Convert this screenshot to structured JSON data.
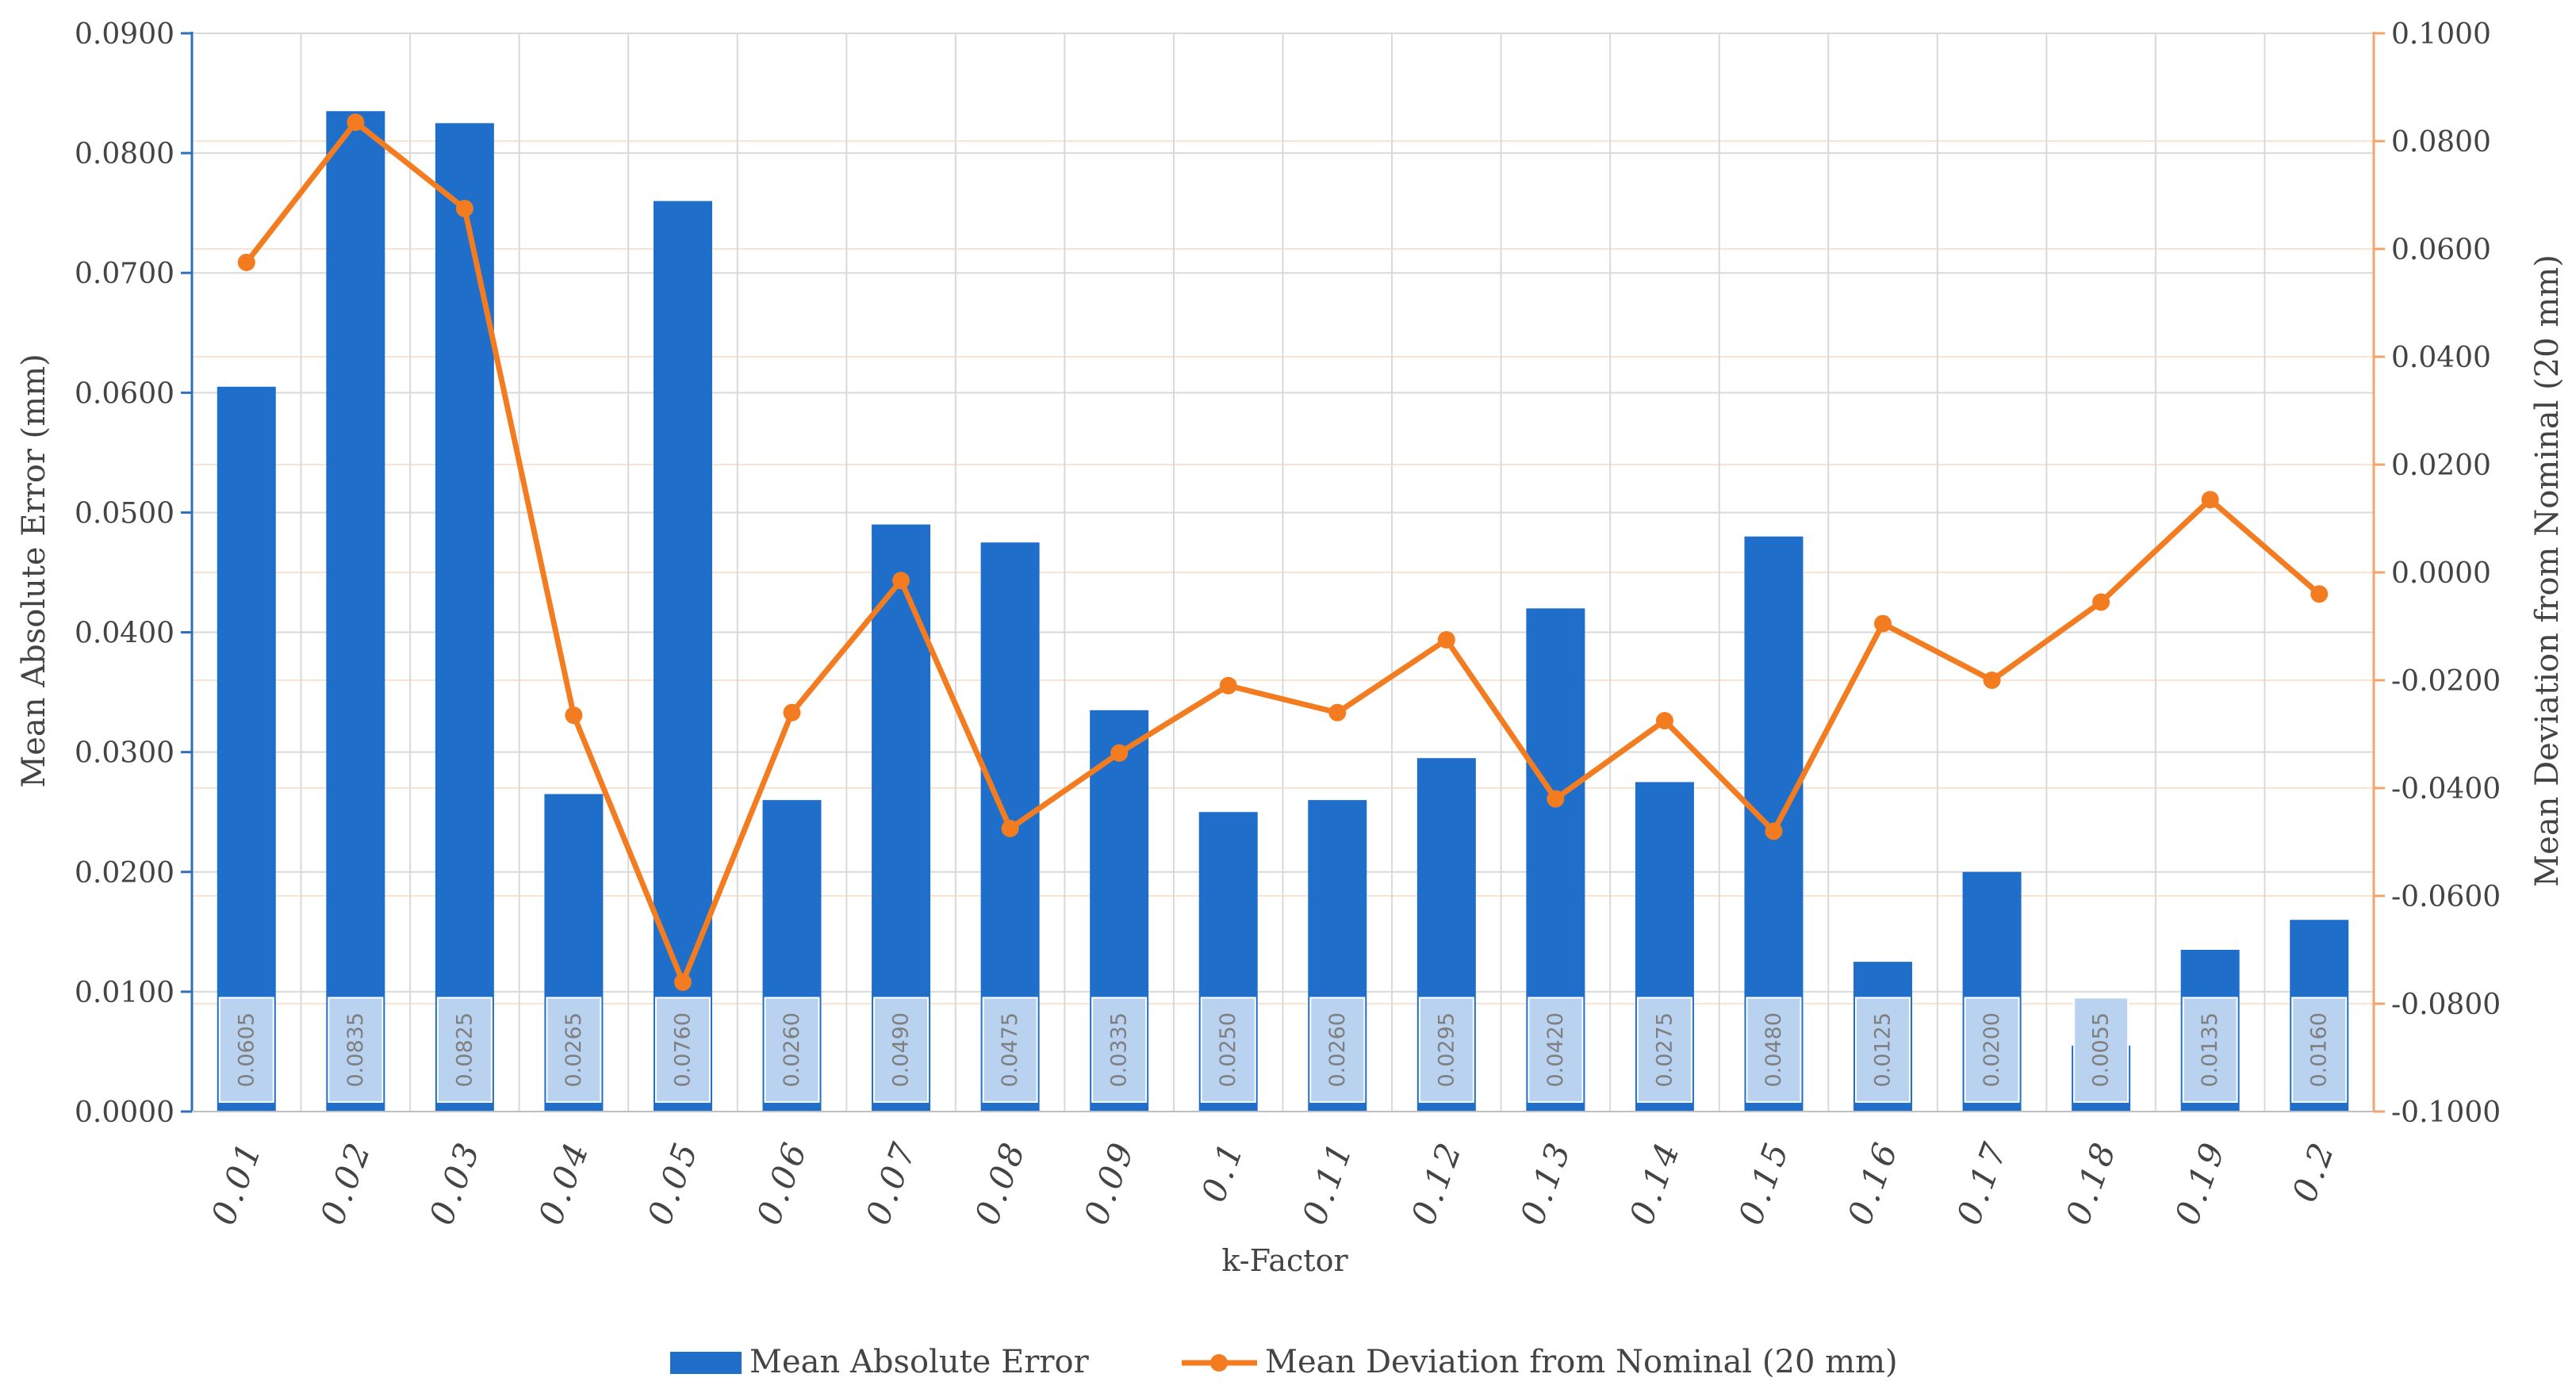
{
  "chart_data": {
    "type": "bar",
    "categories": [
      "0.01",
      "0.02",
      "0.03",
      "0.04",
      "0.05",
      "0.06",
      "0.07",
      "0.08",
      "0.09",
      "0.1",
      "0.11",
      "0.12",
      "0.13",
      "0.14",
      "0.15",
      "0.16",
      "0.17",
      "0.18",
      "0.19",
      "0.2"
    ],
    "series": [
      {
        "name": "Mean Absolute Error",
        "type": "bar",
        "axis": "left",
        "color": "#1f6fca",
        "values": [
          0.0605,
          0.0835,
          0.0825,
          0.0265,
          0.076,
          0.026,
          0.049,
          0.0475,
          0.0335,
          0.025,
          0.026,
          0.0295,
          0.042,
          0.0275,
          0.048,
          0.0125,
          0.02,
          0.0055,
          0.0135,
          0.016
        ],
        "data_labels": [
          "0.0605",
          "0.0835",
          "0.0825",
          "0.0265",
          "0.0760",
          "0.0260",
          "0.0490",
          "0.0475",
          "0.0335",
          "0.0250",
          "0.0260",
          "0.0295",
          "0.0420",
          "0.0275",
          "0.0480",
          "0.0125",
          "0.0200",
          "0.0055",
          "0.0135",
          "0.0160"
        ]
      },
      {
        "name": "Mean Deviation from Nominal (20 mm)",
        "type": "line",
        "axis": "right",
        "color": "#f47c20",
        "values": [
          0.0575,
          0.0835,
          0.0675,
          -0.0265,
          -0.076,
          -0.026,
          -0.0015,
          -0.0475,
          -0.0335,
          -0.021,
          -0.026,
          -0.0125,
          -0.042,
          -0.0275,
          -0.048,
          -0.0095,
          -0.02,
          -0.0055,
          0.0135,
          -0.004
        ]
      }
    ],
    "xlabel": "k-Factor",
    "ylabel": "Mean Absolute Error (mm)",
    "ylabel_right": "Mean Deviation from Nominal (20 mm)",
    "ylim": [
      0,
      0.09
    ],
    "ylim_right": [
      -0.1,
      0.1
    ],
    "yticks": [
      "0.0000",
      "0.0100",
      "0.0200",
      "0.0300",
      "0.0400",
      "0.0500",
      "0.0600",
      "0.0700",
      "0.0800",
      "0.0900"
    ],
    "yticks_right": [
      "-0.1000",
      "-0.0800",
      "-0.0600",
      "-0.0400",
      "-0.0200",
      "0.0000",
      "0.0200",
      "0.0400",
      "0.0600",
      "0.0800",
      "0.1000"
    ],
    "grid": true,
    "legend_position": "bottom"
  }
}
